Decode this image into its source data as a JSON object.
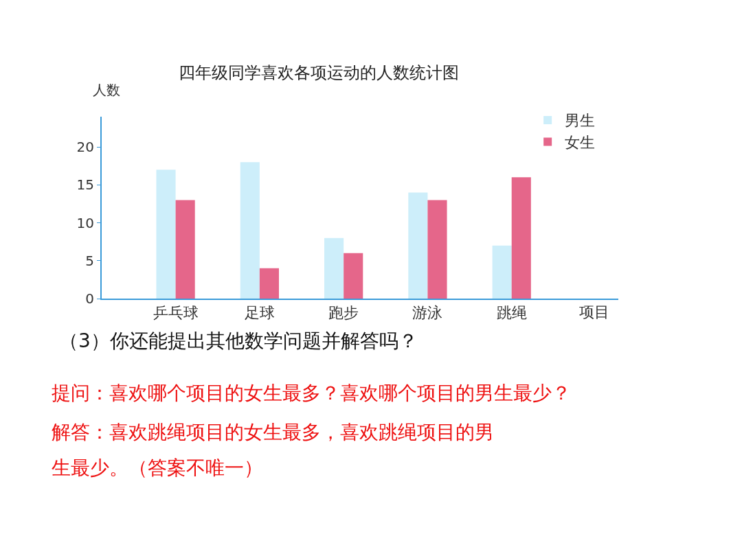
{
  "chart_data": {
    "type": "bar",
    "title": "四年级同学喜欢各项运动的人数统计图",
    "xlabel": "项目",
    "ylabel": "人数",
    "categories": [
      "乒乓球",
      "足球",
      "跑步",
      "游泳",
      "跳绳"
    ],
    "series": [
      {
        "name": "男生",
        "color": "#cdeefa",
        "values": [
          17,
          18,
          8,
          14,
          7
        ]
      },
      {
        "name": "女生",
        "color": "#e5668a",
        "values": [
          13,
          4,
          6,
          13,
          16
        ]
      }
    ],
    "ylim": [
      0,
      24
    ],
    "yticks": [
      0,
      5,
      10,
      15,
      20
    ],
    "legend": "top right",
    "annotations": [
      "（3）你还能提出其他数学问题并解答吗？",
      "提问：喜欢哪个项目的女生最多？喜欢哪个项目的男生最少？",
      "解答：喜欢跳绳项目的女生最多，喜欢跳绳项目的男",
      "生最少。（答案不唯一）"
    ]
  }
}
